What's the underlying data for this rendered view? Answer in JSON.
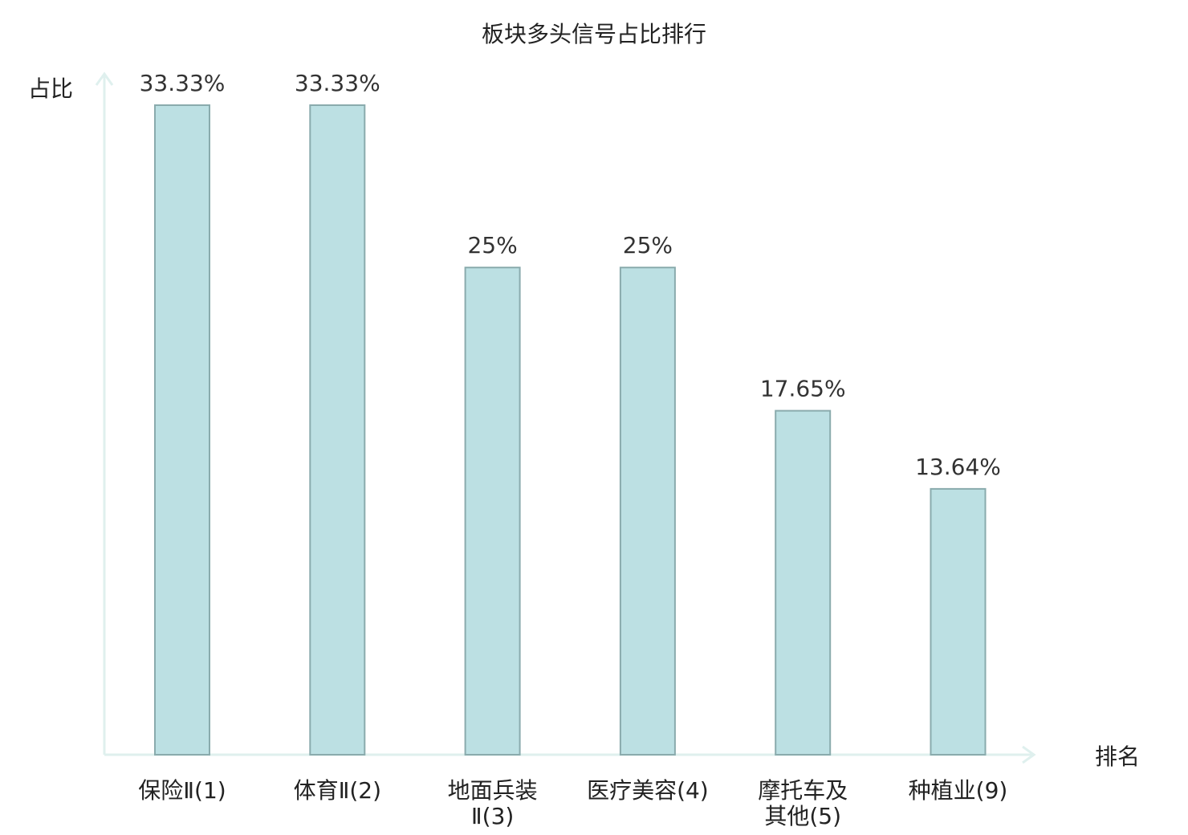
{
  "chart_data": {
    "type": "bar",
    "title": "板块多头信号占比排行",
    "xlabel": "排名",
    "ylabel": "占比",
    "categories": [
      "保险Ⅱ(1)",
      "体育Ⅱ(2)",
      "地面兵装Ⅱ(3)",
      "医疗美容(4)",
      "摩托车及其他(5)",
      "种植业(9)"
    ],
    "category_lines": [
      [
        "保险Ⅱ(1)"
      ],
      [
        "体育Ⅱ(2)"
      ],
      [
        "地面兵装",
        "Ⅱ(3)"
      ],
      [
        "医疗美容(4)"
      ],
      [
        "摩托车及",
        "其他(5)"
      ],
      [
        "种植业(9)"
      ]
    ],
    "values": [
      33.33,
      33.33,
      25,
      25,
      17.65,
      13.64
    ],
    "value_labels": [
      "33.33%",
      "33.33%",
      "25%",
      "25%",
      "17.65%",
      "13.64%"
    ],
    "highlight_index": 5,
    "ylim": [
      0,
      33.33
    ],
    "grid": false,
    "colors": {
      "bar_fill": "#bce0e3",
      "bar_stroke": "#8aabad",
      "axis": "#dff0ee",
      "highlight_label": "#e01010",
      "normal_label": "#222222"
    }
  }
}
